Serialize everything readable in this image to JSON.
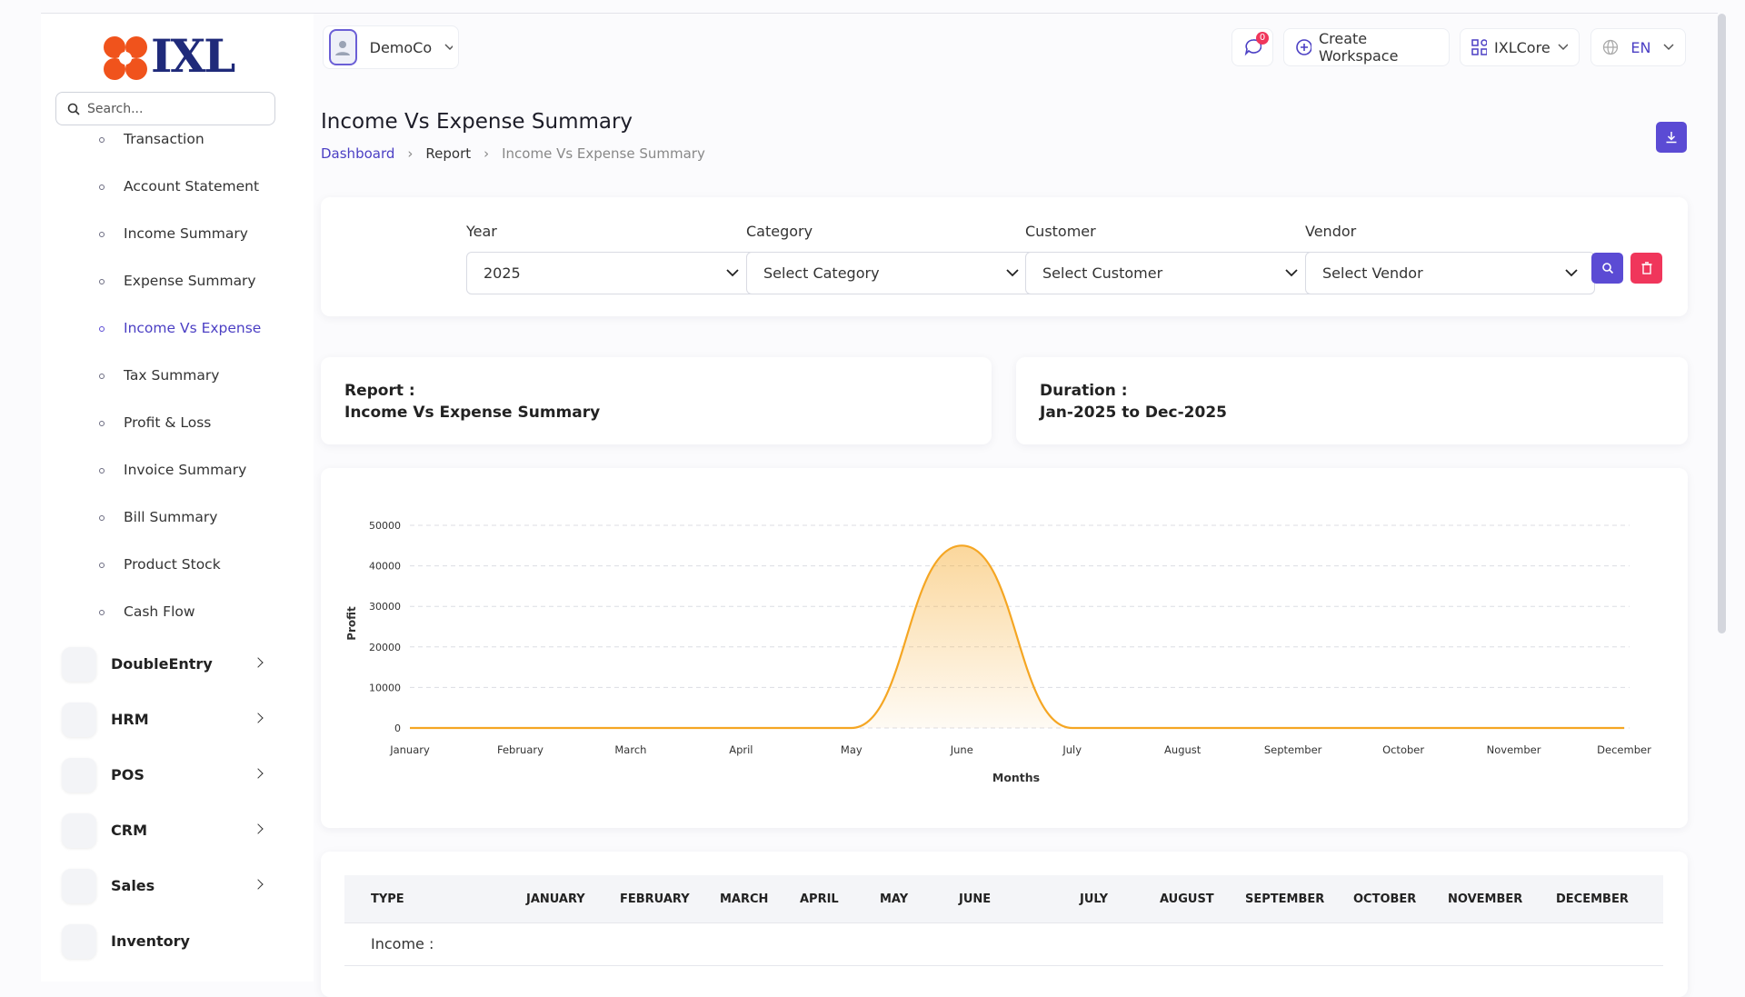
{
  "brand": "IXL",
  "search_placeholder": "Search...",
  "sidebar": {
    "submenu": [
      "Transaction",
      "Account Statement",
      "Income Summary",
      "Expense Summary",
      "Income Vs Expense",
      "Tax Summary",
      "Profit & Loss",
      "Invoice Summary",
      "Bill Summary",
      "Product Stock",
      "Cash Flow"
    ],
    "modules": [
      "DoubleEntry",
      "HRM",
      "POS",
      "CRM",
      "Sales",
      "Inventory"
    ]
  },
  "header": {
    "workspace": "DemoCo",
    "notifications": "0",
    "create": "Create Workspace",
    "app": "IXLCore",
    "language": "EN"
  },
  "page": {
    "title": "Income Vs Expense Summary",
    "breadcrumb": [
      "Dashboard",
      "Report",
      "Income Vs Expense Summary"
    ]
  },
  "filters": {
    "labels": [
      "Year",
      "Category",
      "Customer",
      "Vendor"
    ],
    "values": [
      "2025",
      "Select Category",
      "Select Customer",
      "Select Vendor"
    ]
  },
  "info": {
    "report_label": "Report :",
    "report_value": "Income Vs Expense Summary",
    "duration_label": "Duration :",
    "duration_value": "Jan-2025 to Dec-2025"
  },
  "chart_data": {
    "type": "area",
    "x_label": "Months",
    "y_label": "Profit",
    "categories": [
      "January",
      "February",
      "March",
      "April",
      "May",
      "June",
      "July",
      "August",
      "September",
      "October",
      "November",
      "December"
    ],
    "series": [
      {
        "name": "Profit",
        "color": "#f5a623",
        "values": [
          0,
          0,
          0,
          0,
          0,
          45000,
          0,
          0,
          0,
          0,
          0,
          0
        ]
      }
    ],
    "ylim": [
      0,
      50000
    ],
    "yticks": [
      0,
      10000,
      20000,
      30000,
      40000,
      50000
    ],
    "grid": true
  },
  "table": {
    "headers": [
      "TYPE",
      "JANUARY",
      "FEBRUARY",
      "MARCH",
      "APRIL",
      "MAY",
      "JUNE",
      "JULY",
      "AUGUST",
      "SEPTEMBER",
      "OCTOBER",
      "NOVEMBER",
      "DECEMBER"
    ],
    "rows": [
      [
        "Income :"
      ]
    ]
  }
}
